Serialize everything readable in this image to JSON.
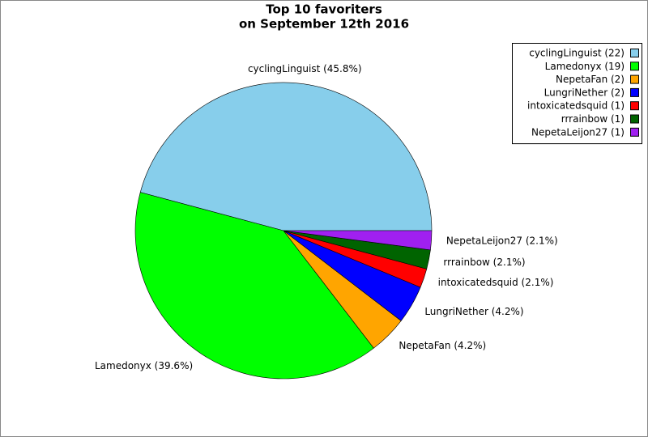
{
  "chart_data": {
    "type": "pie",
    "title": [
      "Top 10 favoriters",
      "on September 12th 2016"
    ],
    "values": [
      22,
      19,
      2,
      2,
      1,
      1,
      1
    ],
    "colors": [
      "#87ceeb",
      "#00ff00",
      "#ffa500",
      "#0000ff",
      "#ff0000",
      "#006400",
      "#a020f0"
    ],
    "slice_labels": [
      "cyclingLinguist (45.8%)",
      "Lamedonyx (39.6%)",
      "NepetaFan (4.2%)",
      "LungriNether (4.2%)",
      "intoxicatedsquid (2.1%)",
      "rrrainbow (2.1%)",
      "NepetaLeijon27 (2.1%)"
    ],
    "legend_labels": [
      "cyclingLinguist (22)",
      "Lamedonyx (19)",
      "NepetaFan (2)",
      "LungriNether (2)",
      "intoxicatedsquid (1)",
      "rrrainbow (1)",
      "NepetaLeijon27 (1)"
    ],
    "legend_position": "upper right"
  }
}
